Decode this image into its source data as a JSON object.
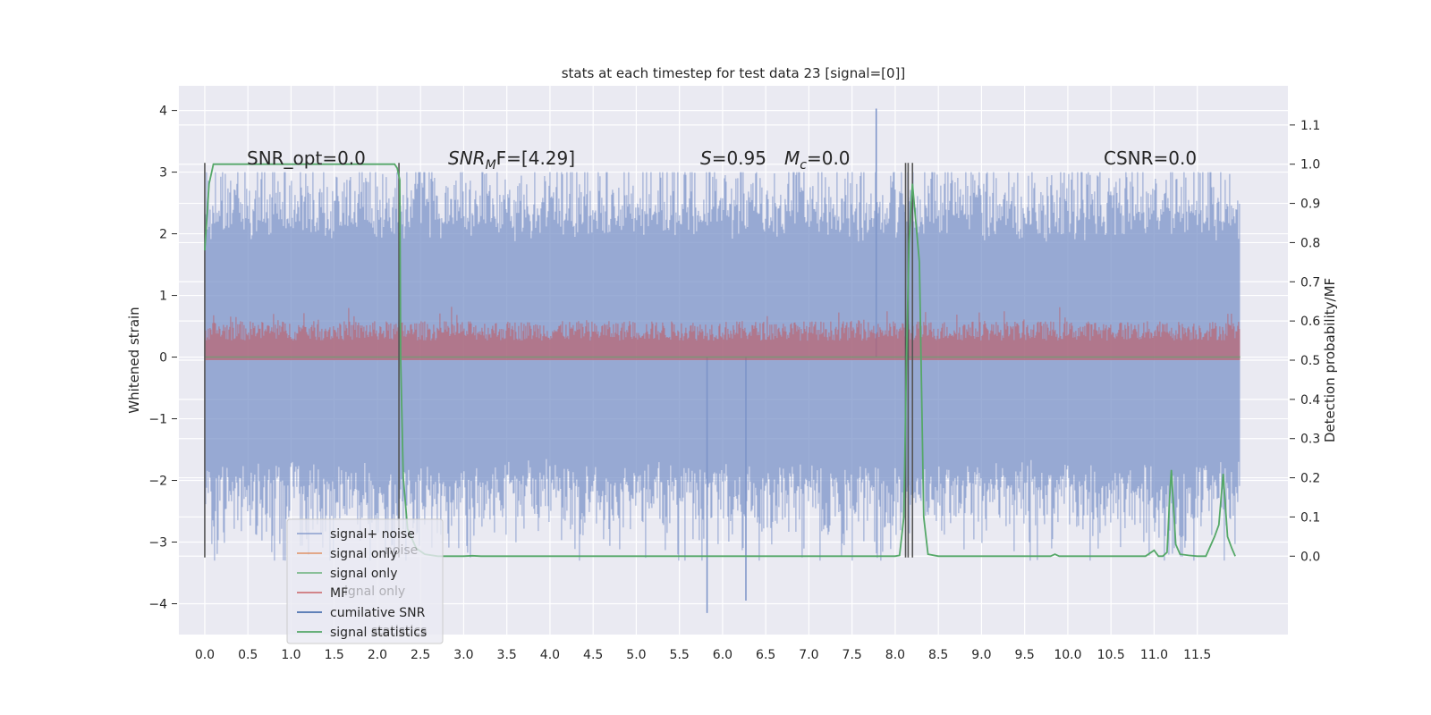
{
  "chart_data": {
    "type": "line",
    "title": "stats at each timestep for test data 23 [signal=[0]]",
    "ylabel": "Whitened strain",
    "y2label": "Detection probability/MF",
    "xlim": [
      -0.3,
      12.55
    ],
    "ylim": [
      -4.5,
      4.4
    ],
    "y2lim": [
      -0.2,
      1.2
    ],
    "xticks": [
      "0.0",
      "0.5",
      "1.0",
      "1.5",
      "2.0",
      "2.5",
      "3.0",
      "3.5",
      "4.0",
      "4.5",
      "5.0",
      "5.5",
      "6.0",
      "6.5",
      "7.0",
      "7.5",
      "8.0",
      "8.5",
      "9.0",
      "9.5",
      "10.0",
      "10.5",
      "11.0",
      "11.5"
    ],
    "yticks": [
      "4",
      "3",
      "2",
      "1",
      "0",
      "−1",
      "−2",
      "−3",
      "−4"
    ],
    "y2ticks": [
      "1.1",
      "1.0",
      "0.9",
      "0.8",
      "0.7",
      "0.6",
      "0.5",
      "0.4",
      "0.3",
      "0.2",
      "0.1",
      "0.0"
    ],
    "grid": true,
    "legend_position": "lower-left",
    "annotations": {
      "snr_opt": "SNR_opt=0.0",
      "snr_mf_sym": "SNR",
      "snr_mf_sub": "M",
      "snr_mf_rest": "F=[4.29]",
      "s_sym": "S",
      "s_val": "=0.95",
      "mc_sym": "M",
      "mc_sub": "c",
      "mc_val": "=0.0",
      "csnr": "CSNR=0.0"
    },
    "legend": [
      {
        "label": "signal+ noise",
        "color": "#7b93c8"
      },
      {
        "label": "signal only",
        "color": "#dd8452"
      },
      {
        "label": "signal only",
        "color": "#55a868"
      },
      {
        "label": "MF",
        "color": "#c44e52"
      },
      {
        "label": "cumilative SNR",
        "color": "#4c72b0"
      },
      {
        "label": "signal statistics",
        "color": "#55a868"
      }
    ],
    "legend_ghost": {
      "noise": "noise",
      "signal_only": "ignal only",
      "statistics": "statistics"
    },
    "series": [
      {
        "name": "signal+ noise",
        "color": "#7b93c8",
        "t_range": [
          0.0,
          12.0
        ],
        "typical_range": [
          -2.0,
          2.2
        ],
        "extremes": {
          "max": 4.03,
          "min": -4.15
        }
      },
      {
        "name": "signal only",
        "color": "#55a868",
        "constant": 0.0
      },
      {
        "name": "MF",
        "color": "#c44e52",
        "axis": "right",
        "t_range": [
          0.0,
          12.0
        ],
        "typical_range": [
          0.5,
          0.6
        ],
        "max": 0.65
      },
      {
        "name": "signal statistics",
        "color": "#55a868",
        "axis": "right",
        "x": [
          0.0,
          0.05,
          0.1,
          0.2,
          1.0,
          2.0,
          2.2,
          2.23,
          2.26,
          2.27,
          2.3,
          2.35,
          2.45,
          2.55,
          2.7,
          3.0,
          3.1,
          3.2,
          4.0,
          5.0,
          6.0,
          7.0,
          8.0,
          8.05,
          8.1,
          8.13,
          8.16,
          8.2,
          8.24,
          8.28,
          8.33,
          8.38,
          8.5,
          9.0,
          9.5,
          9.8,
          9.85,
          9.9,
          10.0,
          10.5,
          10.9,
          11.0,
          11.05,
          11.1,
          11.15,
          11.18,
          11.2,
          11.25,
          11.3,
          11.4,
          11.5,
          11.6,
          11.7,
          11.75,
          11.8,
          11.85,
          11.9,
          11.94
        ],
        "y": [
          0.78,
          0.95,
          1.0,
          1.0,
          1.0,
          1.0,
          1.0,
          0.99,
          0.96,
          0.5,
          0.2,
          0.07,
          0.02,
          0.005,
          0.0,
          0.0,
          0.001,
          0.0,
          0.0,
          0.0,
          0.0,
          0.0,
          0.0,
          0.002,
          0.1,
          0.5,
          0.8,
          0.95,
          0.85,
          0.75,
          0.1,
          0.005,
          0.0,
          0.0,
          0.0,
          0.0,
          0.005,
          0.0,
          0.0,
          0.0,
          0.0,
          0.015,
          0.0,
          0.0,
          0.01,
          0.15,
          0.22,
          0.03,
          0.005,
          0.002,
          0.0,
          0.0,
          0.05,
          0.08,
          0.21,
          0.05,
          0.02,
          0.0
        ]
      }
    ],
    "vlines": [
      0.0,
      2.25,
      8.12,
      8.15,
      8.2
    ]
  }
}
